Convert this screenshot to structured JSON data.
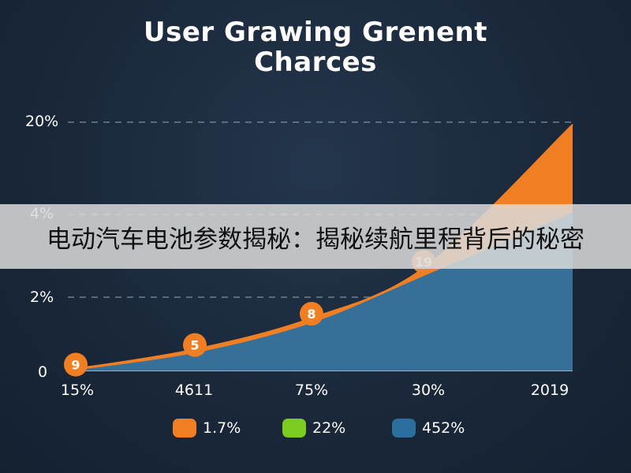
{
  "chart_data": {
    "type": "area",
    "title": "User Grawing Grenent\nCharces",
    "y_ticks": [
      "20%",
      "4%",
      "2%",
      "0"
    ],
    "x_ticks": [
      "15%",
      "4611",
      "75%",
      "30%",
      "2019"
    ],
    "point_labels": [
      "9",
      "5",
      "8",
      "19"
    ],
    "series": [
      {
        "name": "1.7%",
        "color": "#f07f24",
        "values": [
          0.1,
          1.8,
          4.5,
          9.5,
          19.8
        ]
      },
      {
        "name": "22%",
        "color": "#7ccc22",
        "values": []
      },
      {
        "name": "452%",
        "color": "#2b6f9f",
        "values": [
          0.1,
          1.6,
          4.2,
          8.8,
          12.8
        ]
      }
    ],
    "ylim": [
      0,
      20
    ],
    "grid": "dashed-horizontal",
    "legend": "bottom"
  },
  "banner": {
    "text": "电动汽车电池参数揭秘：揭秘续航里程背后的秘密"
  }
}
